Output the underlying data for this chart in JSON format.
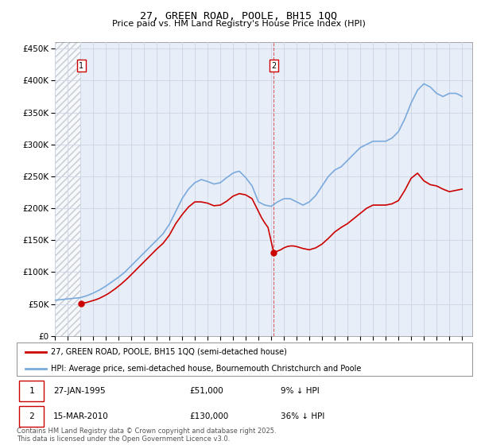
{
  "title1": "27, GREEN ROAD, POOLE, BH15 1QQ",
  "title2": "Price paid vs. HM Land Registry's House Price Index (HPI)",
  "legend_line1": "27, GREEN ROAD, POOLE, BH15 1QQ (semi-detached house)",
  "legend_line2": "HPI: Average price, semi-detached house, Bournemouth Christchurch and Poole",
  "footer": "Contains HM Land Registry data © Crown copyright and database right 2025.\nThis data is licensed under the Open Government Licence v3.0.",
  "annotation1": {
    "label": "1",
    "date": "27-JAN-1995",
    "price": "£51,000",
    "hpi": "9% ↓ HPI"
  },
  "annotation2": {
    "label": "2",
    "date": "15-MAR-2010",
    "price": "£130,000",
    "hpi": "36% ↓ HPI"
  },
  "red_color": "#cc0000",
  "blue_color": "#7aaadd",
  "grid_color": "#d0d8e8",
  "bg_plot": "#e8eef8",
  "annotation_vline_color": "#cc0000",
  "xlim": [
    1993.0,
    2025.8
  ],
  "ylim": [
    0,
    460000
  ],
  "yticks": [
    0,
    50000,
    100000,
    150000,
    200000,
    250000,
    300000,
    350000,
    400000,
    450000
  ],
  "ytick_labels": [
    "£0",
    "£50K",
    "£100K",
    "£150K",
    "£200K",
    "£250K",
    "£300K",
    "£350K",
    "£400K",
    "£450K"
  ],
  "purchase1_x": 1995.07,
  "purchase1_y": 51000,
  "purchase2_x": 2010.21,
  "purchase2_y": 130000,
  "hpi_x": [
    1993.0,
    1993.25,
    1993.5,
    1993.75,
    1994.0,
    1994.25,
    1994.5,
    1994.75,
    1995.0,
    1995.25,
    1995.5,
    1995.75,
    1996.0,
    1996.25,
    1996.5,
    1996.75,
    1997.0,
    1997.25,
    1997.5,
    1997.75,
    1998.0,
    1998.25,
    1998.5,
    1998.75,
    1999.0,
    1999.25,
    1999.5,
    1999.75,
    2000.0,
    2000.25,
    2000.5,
    2000.75,
    2001.0,
    2001.25,
    2001.5,
    2001.75,
    2002.0,
    2002.25,
    2002.5,
    2002.75,
    2003.0,
    2003.25,
    2003.5,
    2003.75,
    2004.0,
    2004.25,
    2004.5,
    2004.75,
    2005.0,
    2005.25,
    2005.5,
    2005.75,
    2006.0,
    2006.25,
    2006.5,
    2006.75,
    2007.0,
    2007.25,
    2007.5,
    2007.75,
    2008.0,
    2008.25,
    2008.5,
    2008.75,
    2009.0,
    2009.25,
    2009.5,
    2009.75,
    2010.0,
    2010.25,
    2010.5,
    2010.75,
    2011.0,
    2011.25,
    2011.5,
    2011.75,
    2012.0,
    2012.25,
    2012.5,
    2012.75,
    2013.0,
    2013.25,
    2013.5,
    2013.75,
    2014.0,
    2014.25,
    2014.5,
    2014.75,
    2015.0,
    2015.25,
    2015.5,
    2015.75,
    2016.0,
    2016.25,
    2016.5,
    2016.75,
    2017.0,
    2017.25,
    2017.5,
    2017.75,
    2018.0,
    2018.25,
    2018.5,
    2018.75,
    2019.0,
    2019.25,
    2019.5,
    2019.75,
    2020.0,
    2020.25,
    2020.5,
    2020.75,
    2021.0,
    2021.25,
    2021.5,
    2021.75,
    2022.0,
    2022.25,
    2022.5,
    2022.75,
    2023.0,
    2023.25,
    2023.5,
    2023.75,
    2024.0,
    2024.25,
    2024.5,
    2024.75,
    2025.0
  ],
  "hpi_y": [
    56000,
    56500,
    57000,
    57500,
    58000,
    58500,
    59000,
    59500,
    60000,
    61500,
    63000,
    65000,
    67000,
    69500,
    72000,
    75000,
    78000,
    81500,
    85000,
    88500,
    92000,
    96000,
    100000,
    105000,
    110000,
    115000,
    120000,
    125000,
    130000,
    135000,
    140000,
    145000,
    150000,
    155000,
    160000,
    167500,
    175000,
    185000,
    195000,
    205000,
    215000,
    222500,
    230000,
    235000,
    240000,
    242500,
    245000,
    243500,
    242000,
    240000,
    238000,
    239000,
    240000,
    244000,
    248000,
    251500,
    255000,
    257000,
    258000,
    253000,
    248000,
    241500,
    235000,
    222500,
    210000,
    207500,
    205000,
    204000,
    203000,
    206500,
    210000,
    212500,
    215000,
    215000,
    215000,
    212500,
    210000,
    207500,
    205000,
    207500,
    210000,
    215000,
    220000,
    227500,
    235000,
    242500,
    250000,
    255000,
    260000,
    262500,
    265000,
    270000,
    275000,
    280000,
    285000,
    290000,
    295000,
    297500,
    300000,
    302500,
    305000,
    305000,
    305000,
    305000,
    305000,
    307500,
    310000,
    315000,
    320000,
    330000,
    340000,
    352500,
    365000,
    375000,
    385000,
    390000,
    395000,
    392500,
    390000,
    385000,
    380000,
    377500,
    375000,
    377500,
    380000,
    380000,
    380000,
    378000,
    375000
  ],
  "red_x": [
    1995.07,
    1995.25,
    1995.5,
    1995.75,
    1996.0,
    1996.25,
    1996.5,
    1996.75,
    1997.0,
    1997.25,
    1997.5,
    1997.75,
    1998.0,
    1998.25,
    1998.5,
    1998.75,
    1999.0,
    1999.25,
    1999.5,
    1999.75,
    2000.0,
    2000.25,
    2000.5,
    2000.75,
    2001.0,
    2001.25,
    2001.5,
    2001.75,
    2002.0,
    2002.25,
    2002.5,
    2002.75,
    2003.0,
    2003.25,
    2003.5,
    2003.75,
    2004.0,
    2004.25,
    2004.5,
    2004.75,
    2005.0,
    2005.25,
    2005.5,
    2005.75,
    2006.0,
    2006.25,
    2006.5,
    2006.75,
    2007.0,
    2007.25,
    2007.5,
    2007.75,
    2008.0,
    2008.25,
    2008.5,
    2008.75,
    2009.0,
    2009.25,
    2009.5,
    2009.75,
    2010.21,
    2010.25,
    2010.5,
    2010.75,
    2011.0,
    2011.25,
    2011.5,
    2011.75,
    2012.0,
    2012.25,
    2012.5,
    2012.75,
    2013.0,
    2013.25,
    2013.5,
    2013.75,
    2014.0,
    2014.25,
    2014.5,
    2014.75,
    2015.0,
    2015.25,
    2015.5,
    2015.75,
    2016.0,
    2016.25,
    2016.5,
    2016.75,
    2017.0,
    2017.25,
    2017.5,
    2017.75,
    2018.0,
    2018.25,
    2018.5,
    2018.75,
    2019.0,
    2019.25,
    2019.5,
    2019.75,
    2020.0,
    2020.25,
    2020.5,
    2020.75,
    2021.0,
    2021.25,
    2021.5,
    2021.75,
    2022.0,
    2022.25,
    2022.5,
    2022.75,
    2023.0,
    2023.25,
    2023.5,
    2023.75,
    2024.0,
    2024.25,
    2024.5,
    2024.75,
    2025.0
  ],
  "red_y": [
    51000,
    51500,
    52500,
    54000,
    55500,
    57000,
    59000,
    61500,
    64000,
    67000,
    70500,
    74000,
    78000,
    82000,
    86500,
    91000,
    96000,
    101000,
    106000,
    111000,
    116000,
    121000,
    126000,
    131000,
    136000,
    140500,
    145000,
    151500,
    158000,
    167000,
    176000,
    183000,
    190000,
    196000,
    202000,
    206000,
    210000,
    210000,
    210000,
    209000,
    208000,
    206000,
    204000,
    204500,
    205000,
    208000,
    211000,
    215000,
    219000,
    221000,
    223000,
    222000,
    221000,
    218000,
    215000,
    205000,
    195000,
    185000,
    177000,
    170000,
    130000,
    131000,
    133000,
    135000,
    138000,
    140000,
    141000,
    141000,
    140000,
    138500,
    137000,
    136000,
    135000,
    136500,
    138000,
    141000,
    144000,
    148500,
    153000,
    158000,
    163000,
    166500,
    170000,
    173000,
    176000,
    180000,
    184000,
    188000,
    192000,
    196000,
    200000,
    202500,
    205000,
    205000,
    205000,
    205000,
    205000,
    206000,
    207000,
    209500,
    212000,
    220000,
    228000,
    237500,
    247000,
    251000,
    255000,
    249000,
    243000,
    240000,
    237000,
    236000,
    235000,
    232500,
    230000,
    228000,
    226000,
    227000,
    228000,
    229000,
    230000
  ]
}
